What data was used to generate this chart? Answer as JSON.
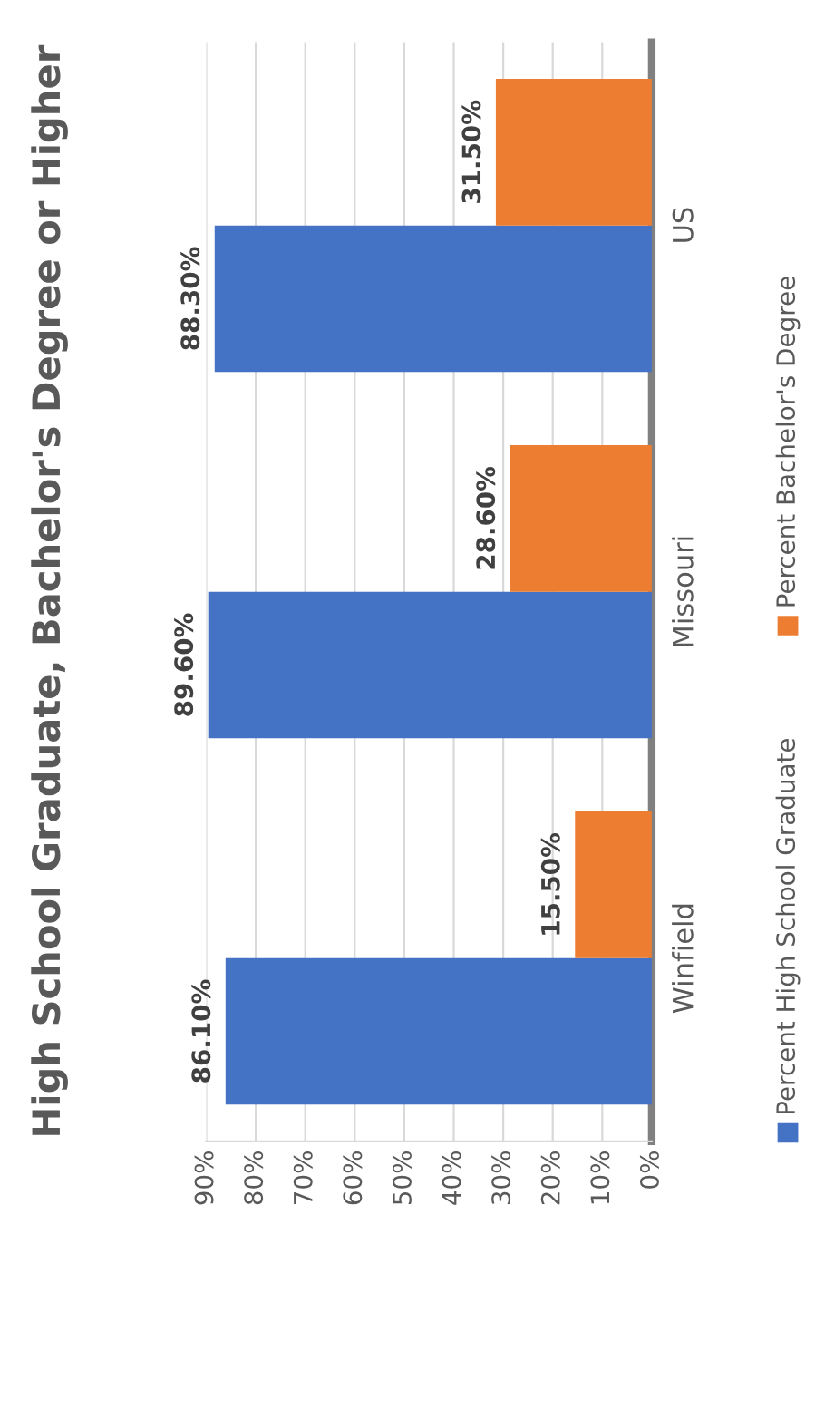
{
  "chart_data": {
    "type": "bar",
    "orientation": "horizontal",
    "title": "High School Graduate, Bachelor's Degree or Higher",
    "categories": [
      "US",
      "Missouri",
      "Winfield"
    ],
    "series": [
      {
        "name": "Percent High School Graduate",
        "color": "#4472c4",
        "values": [
          88.3,
          89.6,
          86.1
        ],
        "value_labels": [
          "88.30%",
          "89.60%",
          "86.10%"
        ]
      },
      {
        "name": "Percent Bachelor's Degree",
        "color": "#ed7d31",
        "values": [
          31.5,
          28.6,
          15.5
        ],
        "value_labels": [
          "31.50%",
          "28.60%",
          "15.50%"
        ]
      }
    ],
    "xlim": [
      90,
      0
    ],
    "xticks": [
      {
        "value": 0,
        "label": "0%"
      },
      {
        "value": 10,
        "label": "10%"
      },
      {
        "value": 20,
        "label": "20%"
      },
      {
        "value": 30,
        "label": "30%"
      },
      {
        "value": 40,
        "label": "40%"
      },
      {
        "value": 50,
        "label": "50%"
      },
      {
        "value": 60,
        "label": "60%"
      },
      {
        "value": 70,
        "label": "70%"
      },
      {
        "value": 80,
        "label": "80%"
      },
      {
        "value": 90,
        "label": "90%"
      }
    ],
    "grid": "x",
    "legend": "right"
  }
}
